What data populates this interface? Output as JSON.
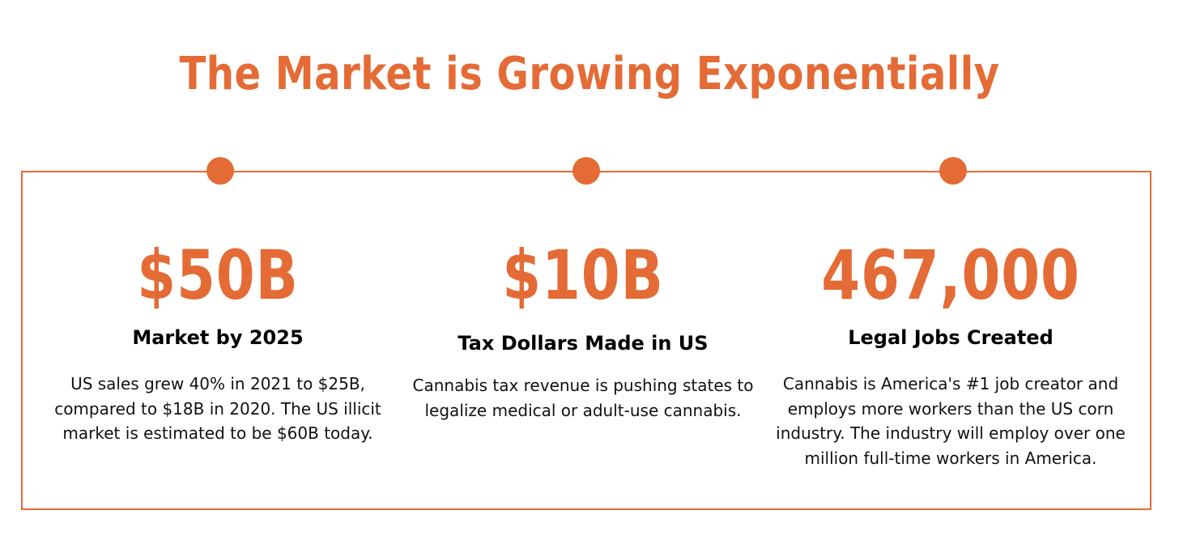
{
  "title": "The Market is Growing Exponentially",
  "colors": {
    "accent": "#e46b35",
    "text": "#000000",
    "background": "#ffffff"
  },
  "stats": [
    {
      "value": "$50B",
      "label": "Market by 2025",
      "description": "US sales grew 40% in 2021 to $25B, compared to $18B in 2020. The US illicit market is estimated to be $60B today."
    },
    {
      "value": "$10B",
      "label": "Tax Dollars Made in US",
      "description": "Cannabis tax revenue is pushing states to legalize medical or adult-use cannabis."
    },
    {
      "value": "467,000",
      "label": "Legal Jobs Created",
      "description": "Cannabis is America's #1 job creator and employs more workers than the US corn industry. The industry will employ over one million full-time workers in America."
    }
  ]
}
